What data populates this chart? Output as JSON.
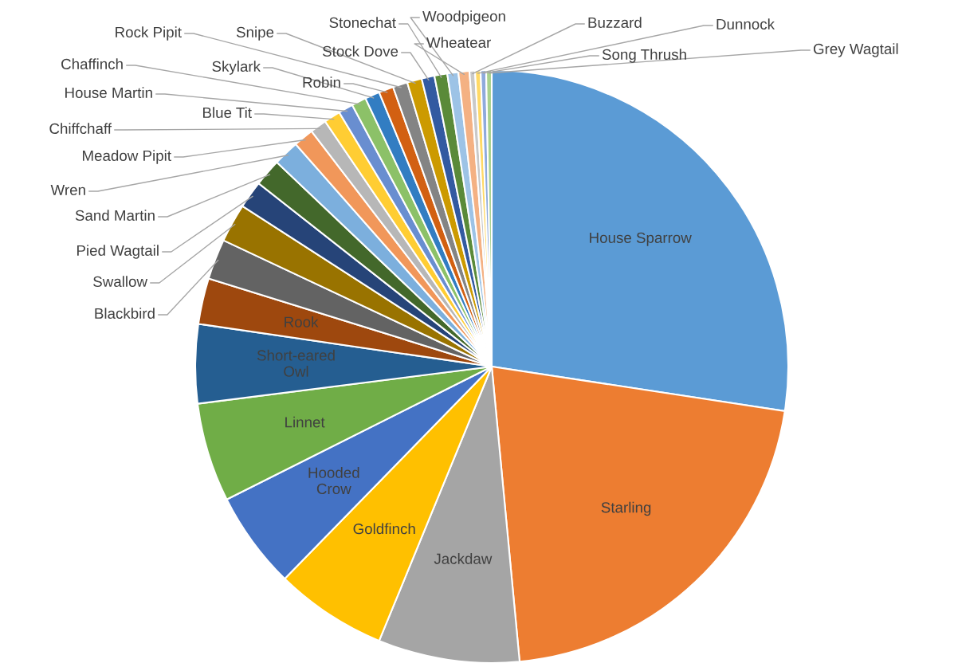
{
  "chart_data": {
    "type": "pie",
    "categories": [
      "House Sparrow",
      "Starling",
      "Jackdaw",
      "Goldfinch",
      "Hooded Crow",
      "Linnet",
      "Short-eared Owl",
      "Rook",
      "Blackbird",
      "Swallow",
      "Pied Wagtail",
      "Sand Martin",
      "Wren",
      "Meadow Pipit",
      "Chiffchaff",
      "Blue Tit",
      "House Martin",
      "Chaffinch",
      "Skylark",
      "Robin",
      "Rock Pipit",
      "Snipe",
      "Stock Dove",
      "Stonechat",
      "Woodpigeon",
      "Wheatear",
      "Buzzard",
      "Dunnock",
      "Song Thrush",
      "Grey Wagtail"
    ],
    "values": [
      27.4,
      21.1,
      7.7,
      6.1,
      5.3,
      5.4,
      4.3,
      2.5,
      2.2,
      2.1,
      1.5,
      1.5,
      1.4,
      1.1,
      0.9,
      0.9,
      0.8,
      0.8,
      0.8,
      0.8,
      0.8,
      0.8,
      0.7,
      0.7,
      0.6,
      0.6,
      0.3,
      0.3,
      0.3,
      0.3
    ],
    "colors": [
      "#5b9bd5",
      "#ed7d31",
      "#a5a5a5",
      "#ffc000",
      "#4472c4",
      "#70ad47",
      "#255e91",
      "#9e480e",
      "#636363",
      "#997300",
      "#264478",
      "#43682b",
      "#7cafdd",
      "#f1975a",
      "#b7b7b7",
      "#ffcd33",
      "#698ed0",
      "#8cc168",
      "#327dc2",
      "#d26012",
      "#848484",
      "#cc9a00",
      "#335aa1",
      "#5a8a39",
      "#9dc3e6",
      "#f4b183",
      "#c9c9c9",
      "#ffd966",
      "#8faadc",
      "#a9d18e"
    ]
  }
}
